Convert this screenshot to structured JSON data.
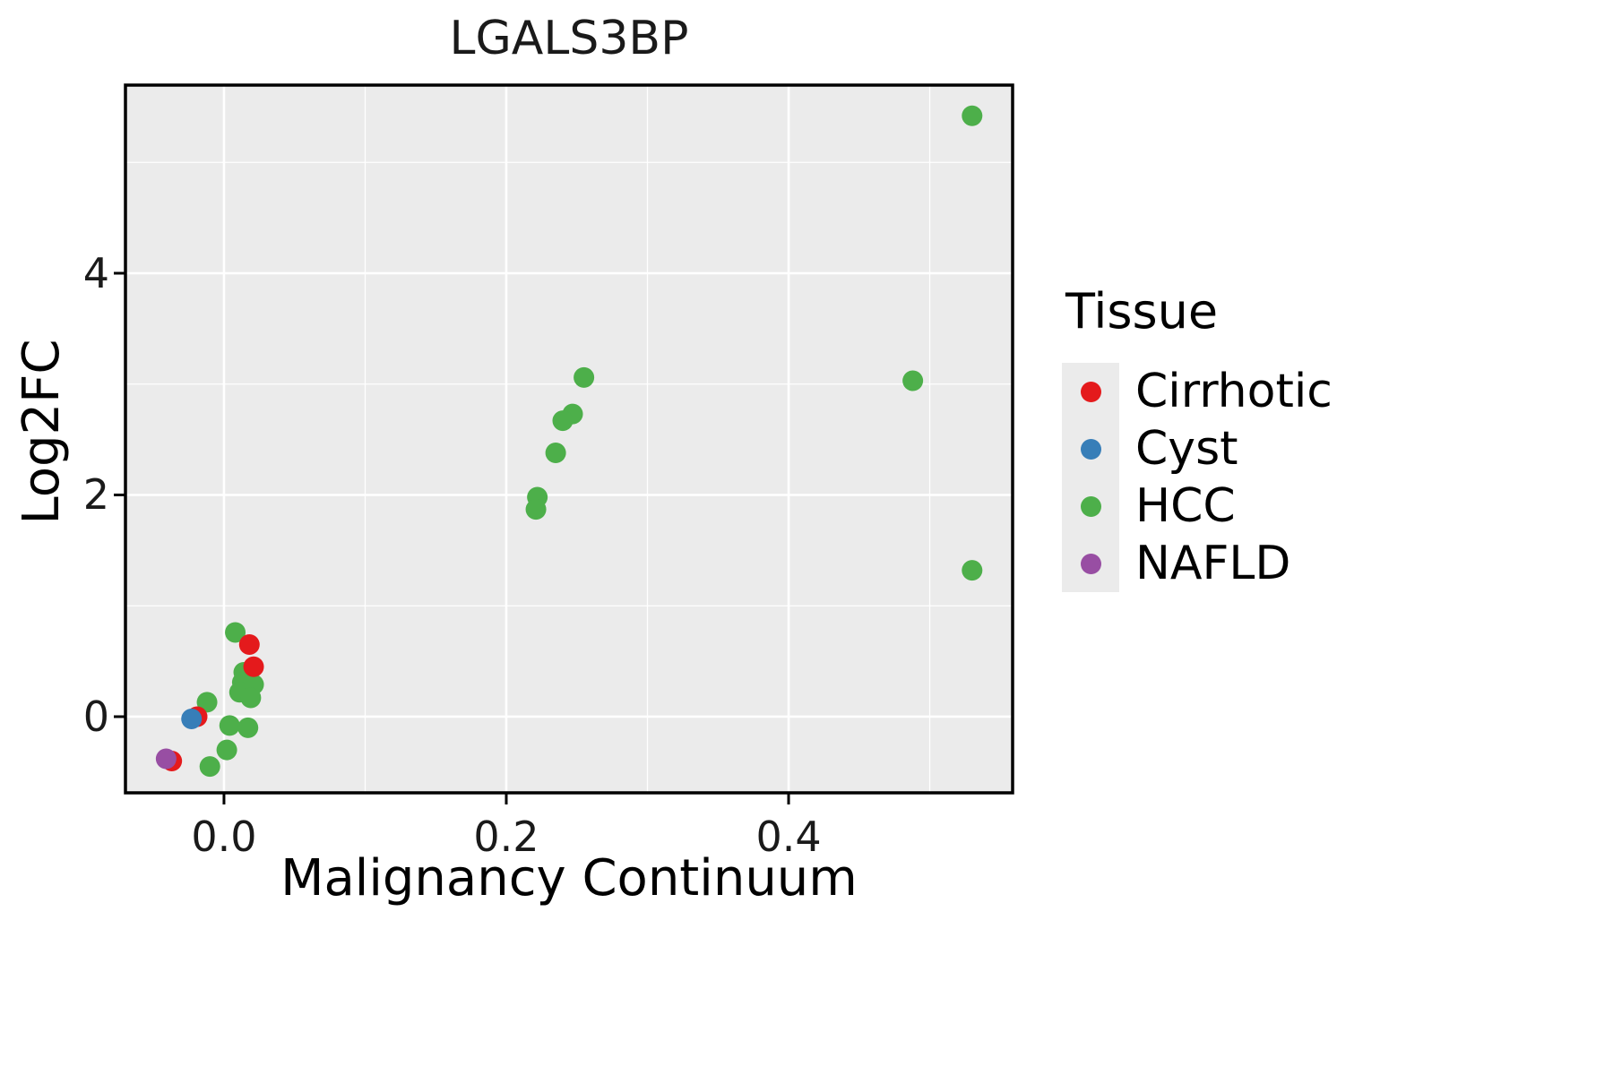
{
  "chart_data": {
    "type": "scatter",
    "title": "LGALS3BP",
    "xlabel": "Malignancy Continuum",
    "ylabel": "Log2FC",
    "xlim": [
      -0.0698,
      0.5587
    ],
    "ylim": [
      -0.687,
      5.697
    ],
    "x_ticks": [
      0.0,
      0.2,
      0.4
    ],
    "x_tick_labels": [
      "0.0",
      "0.2",
      "0.4"
    ],
    "x_minor_ticks": [
      0.1,
      0.3,
      0.5
    ],
    "y_ticks": [
      0,
      2,
      4
    ],
    "y_tick_labels": [
      "0",
      "2",
      "4"
    ],
    "y_minor_ticks": [
      1,
      3,
      5
    ],
    "grid": true,
    "panel_bg": "#EBEBEB",
    "grid_color": "#FFFFFF",
    "axis_color": "#000000",
    "legend": {
      "title": "Tissue",
      "position": "right"
    },
    "series": [
      {
        "name": "Cirrhotic",
        "color": "#E41A1C",
        "points": [
          [
            0.018,
            0.65
          ],
          [
            0.021,
            0.45
          ],
          [
            -0.019,
            0.0
          ],
          [
            -0.037,
            -0.4
          ]
        ]
      },
      {
        "name": "Cyst",
        "color": "#377EB8",
        "points": [
          [
            -0.023,
            -0.02
          ]
        ]
      },
      {
        "name": "HCC",
        "color": "#4DAF4A",
        "points": [
          [
            0.53,
            5.42
          ],
          [
            0.488,
            3.03
          ],
          [
            0.53,
            1.32
          ],
          [
            0.255,
            3.06
          ],
          [
            0.247,
            2.73
          ],
          [
            0.24,
            2.67
          ],
          [
            0.235,
            2.38
          ],
          [
            0.222,
            1.98
          ],
          [
            0.221,
            1.87
          ],
          [
            0.008,
            0.76
          ],
          [
            0.014,
            0.4
          ],
          [
            0.013,
            0.31
          ],
          [
            0.021,
            0.29
          ],
          [
            0.011,
            0.22
          ],
          [
            0.019,
            0.17
          ],
          [
            -0.012,
            0.13
          ],
          [
            0.004,
            -0.08
          ],
          [
            0.017,
            -0.1
          ],
          [
            0.002,
            -0.3
          ],
          [
            -0.01,
            -0.45
          ]
        ]
      },
      {
        "name": "NAFLD",
        "color": "#984EA3",
        "points": [
          [
            -0.041,
            -0.38
          ]
        ]
      }
    ]
  }
}
